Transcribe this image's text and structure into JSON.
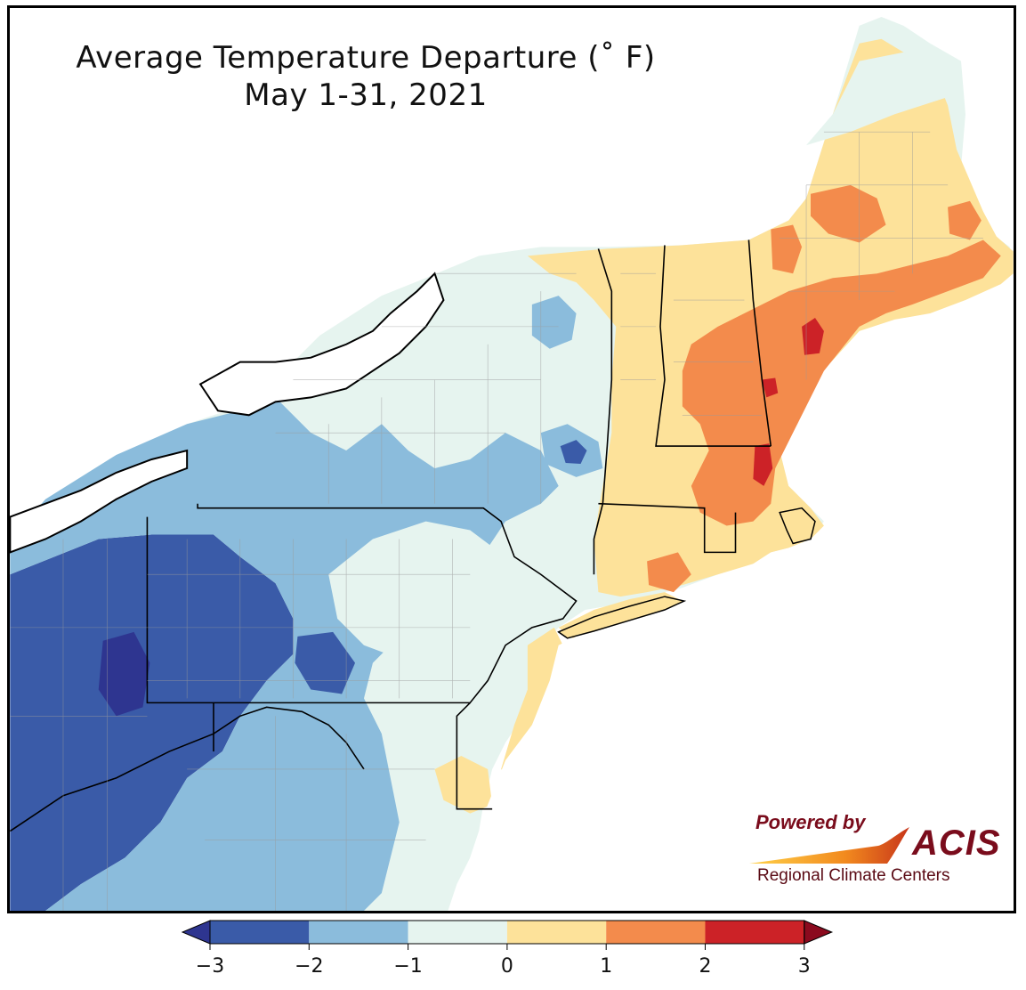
{
  "title": {
    "line1": "Average Temperature Departure (˚ F)",
    "line2": "May 1-31, 2021"
  },
  "logo": {
    "powered_by": "Powered by",
    "name": "ACIS",
    "subtitle": "Regional Climate Centers"
  },
  "legend": {
    "ticks": [
      "−3",
      "−2",
      "−1",
      "0",
      "1",
      "2",
      "3"
    ],
    "bins": [
      {
        "range": "-3 to -2",
        "color": "#3a5ba8"
      },
      {
        "range": "-2 to -1",
        "color": "#8bbcdc"
      },
      {
        "range": "-1 to 0",
        "color": "#e6f4ef"
      },
      {
        "range": "0 to 1",
        "color": "#fde29a"
      },
      {
        "range": "1 to 2",
        "color": "#f38b4c"
      },
      {
        "range": "2 to 3",
        "color": "#cc2227"
      }
    ],
    "under_color": "#2e3590",
    "over_color": "#8b0a1e"
  },
  "colors": {
    "water": "#ffffff",
    "border": "#000000",
    "county_lines": "#9a9a9a"
  }
}
